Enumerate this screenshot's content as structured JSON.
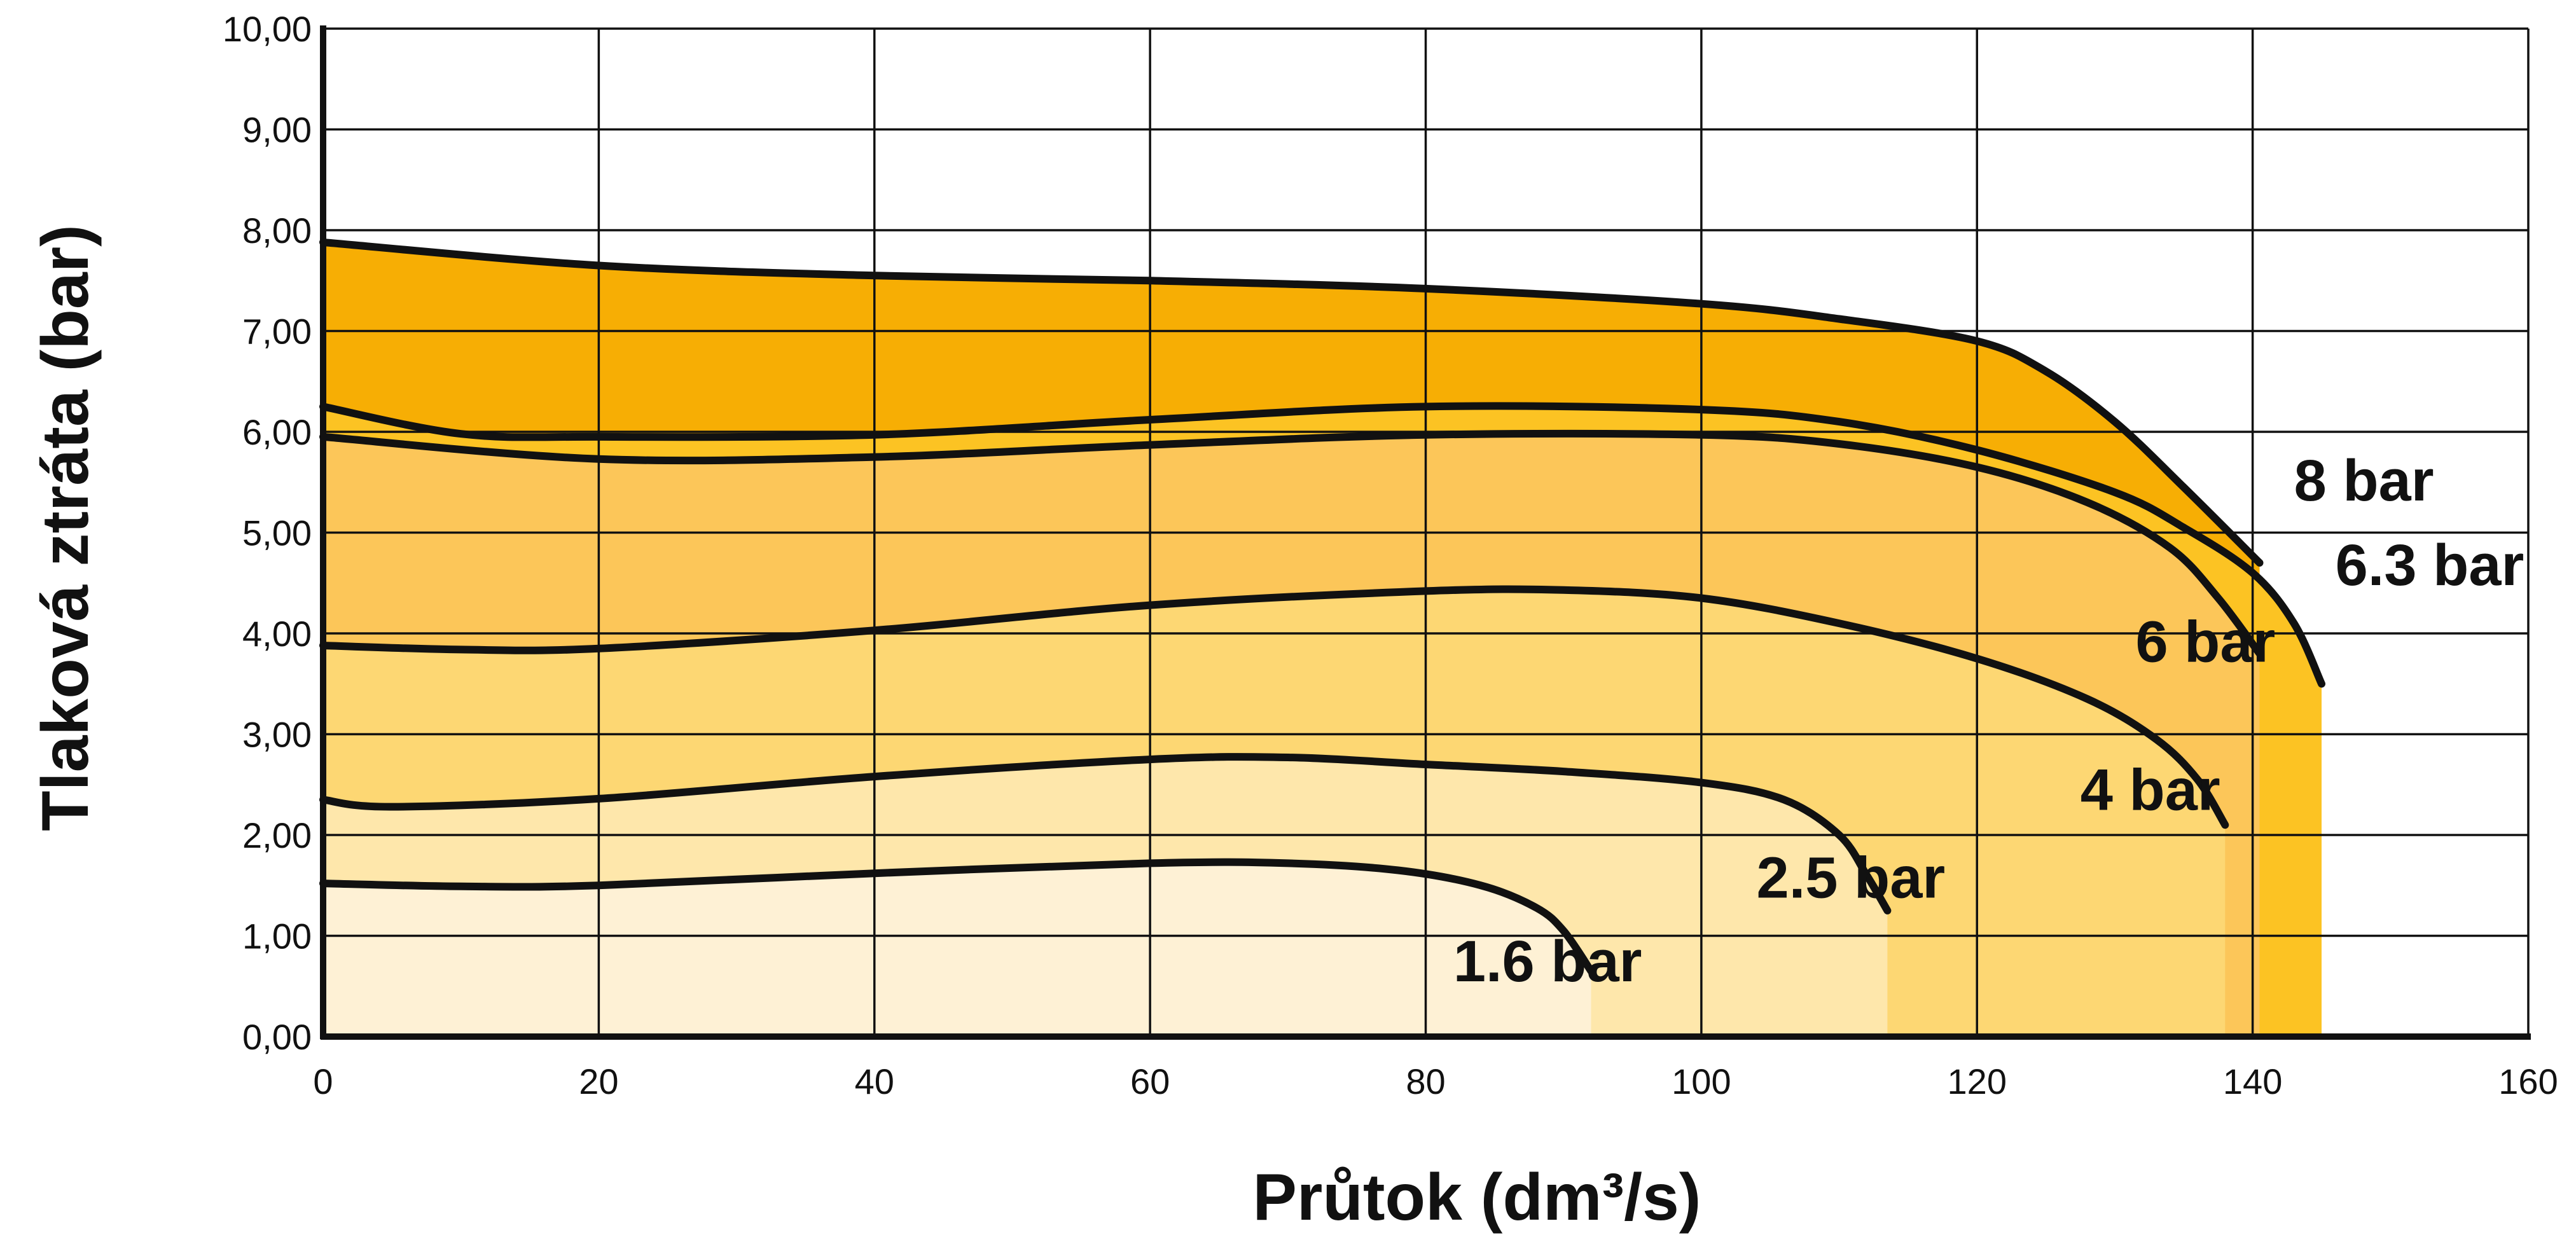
{
  "chart_data": {
    "type": "area",
    "title": "",
    "xlabel": "Průtok (dm³/s)",
    "ylabel": "Tlaková ztráta (bar)",
    "xlim": [
      0,
      160
    ],
    "ylim": [
      0,
      10
    ],
    "x_ticks": [
      "0",
      "20",
      "40",
      "60",
      "80",
      "100",
      "120",
      "140",
      "160"
    ],
    "y_ticks": [
      "0,00",
      "1,00",
      "2,00",
      "3,00",
      "4,00",
      "5,00",
      "6,00",
      "7,00",
      "8,00",
      "9,00",
      "10,00"
    ],
    "grid": true,
    "legend": "none",
    "series": [
      {
        "name": "8 bar",
        "fill": "#F7AE04",
        "x": [
          0,
          20,
          40,
          60,
          80,
          100,
          110,
          120,
          125,
          130,
          135,
          140.5
        ],
        "y": [
          7.88,
          7.65,
          7.55,
          7.5,
          7.42,
          7.27,
          7.12,
          6.9,
          6.6,
          6.1,
          5.45,
          4.7
        ]
      },
      {
        "name": "6.3 bar",
        "fill": "#FCC323",
        "x": [
          0,
          10,
          20,
          40,
          60,
          80,
          100,
          110,
          120,
          130,
          135,
          140,
          143,
          145
        ],
        "y": [
          6.25,
          5.98,
          5.95,
          5.97,
          6.12,
          6.25,
          6.22,
          6.1,
          5.82,
          5.4,
          5.05,
          4.6,
          4.1,
          3.5
        ]
      },
      {
        "name": "6 bar",
        "fill": "#FCC659",
        "x": [
          0,
          20,
          40,
          60,
          80,
          100,
          110,
          120,
          128,
          134,
          137.5,
          140.5
        ],
        "y": [
          5.95,
          5.73,
          5.75,
          5.87,
          5.97,
          5.97,
          5.88,
          5.65,
          5.3,
          4.85,
          4.35,
          3.8
        ]
      },
      {
        "name": "4 bar",
        "fill": "#FDD773",
        "x": [
          0,
          10,
          20,
          40,
          60,
          80,
          90,
          100,
          110,
          120,
          128,
          133,
          136,
          138
        ],
        "y": [
          3.88,
          3.84,
          3.85,
          4.03,
          4.28,
          4.42,
          4.43,
          4.35,
          4.1,
          3.75,
          3.35,
          2.95,
          2.55,
          2.1
        ]
      },
      {
        "name": "2.5 bar",
        "fill": "#FEE7AB",
        "x": [
          0,
          5,
          20,
          40,
          60,
          70,
          80,
          90,
          100,
          106,
          110,
          112,
          113.5
        ],
        "y": [
          2.35,
          2.28,
          2.36,
          2.58,
          2.75,
          2.77,
          2.7,
          2.63,
          2.52,
          2.35,
          2.0,
          1.6,
          1.25
        ]
      },
      {
        "name": "1.6 bar",
        "fill": "#FEF1D5",
        "x": [
          0,
          10,
          20,
          40,
          60,
          70,
          78,
          84,
          88,
          90,
          92
        ],
        "y": [
          1.52,
          1.49,
          1.5,
          1.62,
          1.72,
          1.72,
          1.65,
          1.5,
          1.28,
          1.05,
          0.65
        ]
      }
    ],
    "series_labels": [
      "8 bar",
      "6.3 bar",
      "6 bar",
      "4 bar",
      "2.5 bar",
      "1.6 bar"
    ]
  }
}
